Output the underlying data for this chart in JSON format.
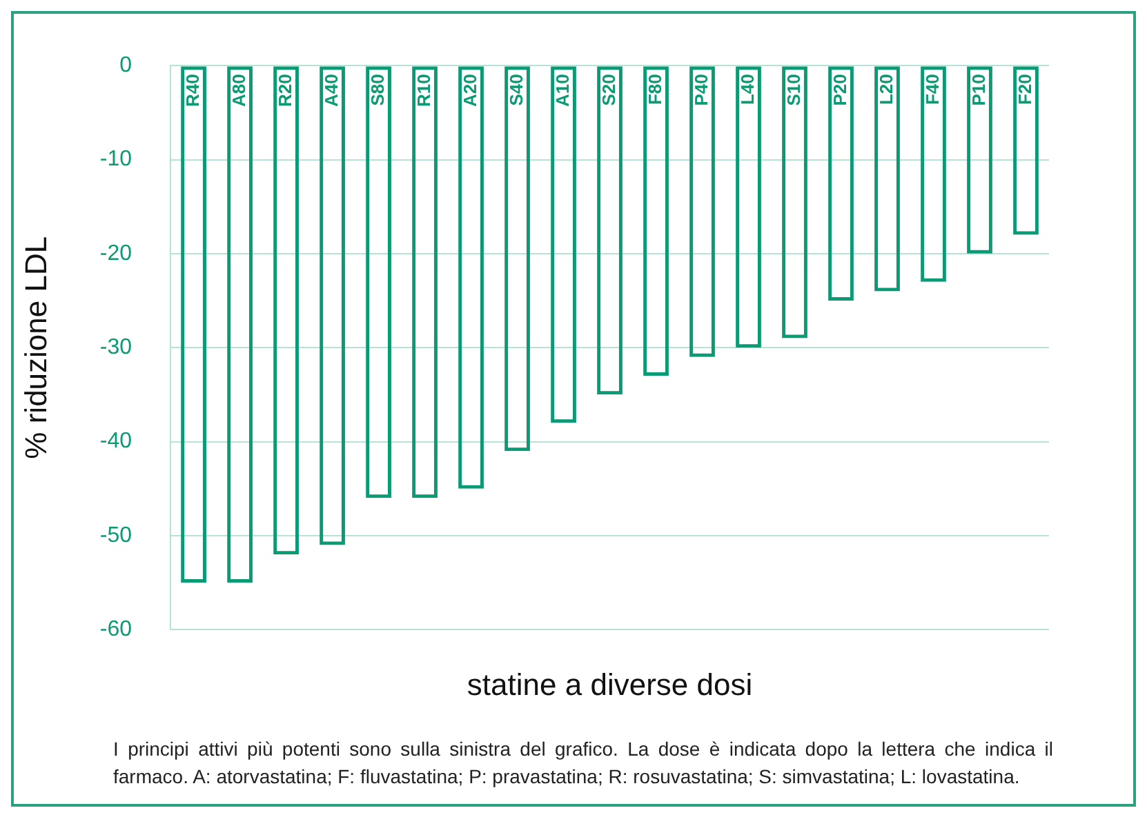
{
  "chart_data": {
    "type": "bar",
    "xlabel": "statine a diverse dosi",
    "ylabel": "% riduzione LDL",
    "categories": [
      "R40",
      "A80",
      "R20",
      "A40",
      "S80",
      "R10",
      "A20",
      "S40",
      "A10",
      "S20",
      "F80",
      "P40",
      "L40",
      "S10",
      "P20",
      "L20",
      "F40",
      "P10",
      "F20"
    ],
    "values": [
      -55,
      -55,
      -52,
      -51,
      -46,
      -46,
      -45,
      -41,
      -38,
      -35,
      -33,
      -31,
      -30,
      -29,
      -25,
      -24,
      -23,
      -20,
      -18
    ],
    "color": "#0a9a74",
    "ylim": [
      -60,
      0
    ],
    "yticks": [
      0,
      -10,
      -20,
      -30,
      -40,
      -50,
      -60
    ],
    "grid": "y",
    "legend": false,
    "annotations": [
      "I principi attivi più potenti sono sulla sinistra del grafico. La dose è indicata dopo la lettera che indica il farmaco. A: atorvastatina; F: fluvastatina; P: pravastatina; R: rosuvastatina; S: simvastatina; L: lovastatina."
    ]
  }
}
